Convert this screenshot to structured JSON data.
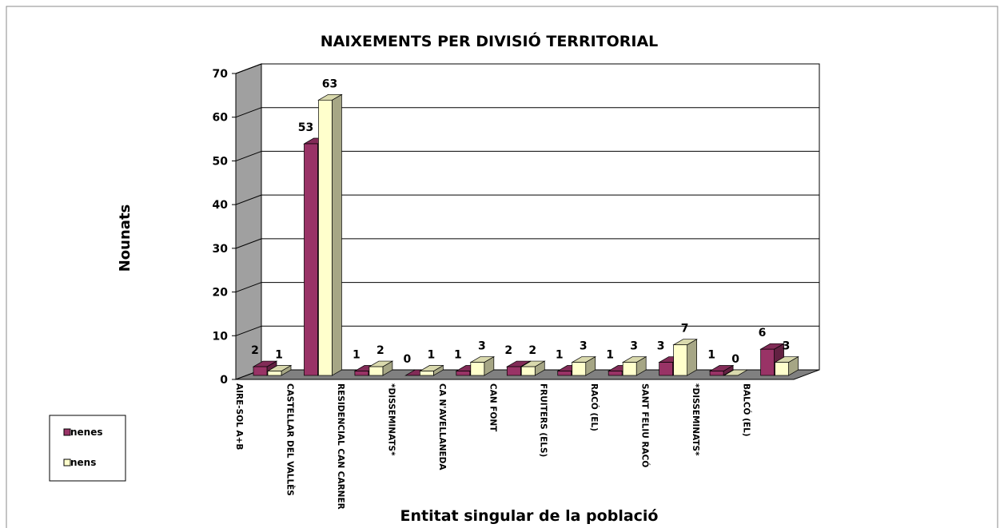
{
  "chart_data": {
    "type": "bar3d",
    "title": "NAIXEMENTS PER DIVISIÓ TERRITORIAL",
    "x_label": "Entitat singular de la població",
    "y_label": "Nounats",
    "categories": [
      "AIRE-SOL A+B",
      "CASTELLAR DEL VALLÈS",
      "RESIDENCIAL CAN CARNER",
      "*DISSEMINATS*",
      "CA N'AVELLANEDA",
      "CAN FONT",
      "FRUITERS (ELS)",
      "RACÓ (EL)",
      "SANT FELIU RACÓ",
      "*DISSEMINATS*",
      "BALCÓ (EL)"
    ],
    "series": [
      {
        "name": "nenes",
        "color": "#993366",
        "values": [
          2,
          53,
          1,
          0,
          1,
          2,
          1,
          1,
          3,
          1,
          6
        ]
      },
      {
        "name": "nens",
        "color": "#ffffcc",
        "values": [
          1,
          63,
          2,
          1,
          3,
          2,
          3,
          3,
          7,
          0,
          3
        ]
      }
    ],
    "ylim": [
      0,
      70
    ],
    "yticks": [
      0,
      10,
      20,
      30,
      40,
      50,
      60,
      70
    ],
    "grid": true,
    "legend": "bottom-left"
  }
}
